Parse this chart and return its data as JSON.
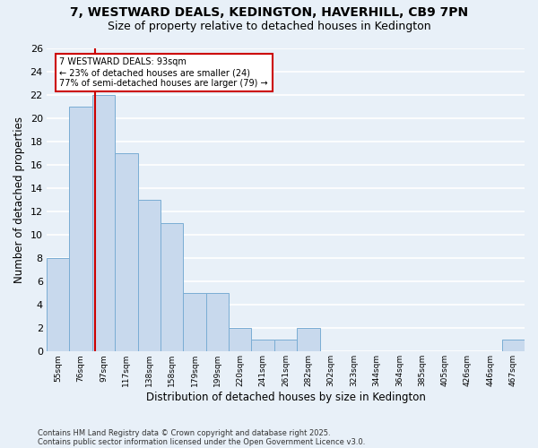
{
  "title_line1": "7, WESTWARD DEALS, KEDINGTON, HAVERHILL, CB9 7PN",
  "title_line2": "Size of property relative to detached houses in Kedington",
  "xlabel": "Distribution of detached houses by size in Kedington",
  "ylabel": "Number of detached properties",
  "categories": [
    "55sqm",
    "76sqm",
    "97sqm",
    "117sqm",
    "138sqm",
    "158sqm",
    "179sqm",
    "199sqm",
    "220sqm",
    "241sqm",
    "261sqm",
    "282sqm",
    "302sqm",
    "323sqm",
    "344sqm",
    "364sqm",
    "385sqm",
    "405sqm",
    "426sqm",
    "446sqm",
    "467sqm"
  ],
  "values": [
    8,
    21,
    22,
    17,
    13,
    11,
    5,
    5,
    2,
    1,
    1,
    2,
    0,
    0,
    0,
    0,
    0,
    0,
    0,
    0,
    1
  ],
  "bar_color": "#c8d9ed",
  "bar_edge_color": "#7aadd4",
  "ylim": [
    0,
    26
  ],
  "yticks": [
    0,
    2,
    4,
    6,
    8,
    10,
    12,
    14,
    16,
    18,
    20,
    22,
    24,
    26
  ],
  "redline_x": 1.62,
  "annotation_text": "7 WESTWARD DEALS: 93sqm\n← 23% of detached houses are smaller (24)\n77% of semi-detached houses are larger (79) →",
  "annotation_box_color": "#ffffff",
  "annotation_box_edge": "#cc0000",
  "redline_color": "#cc0000",
  "background_color": "#e8f0f8",
  "grid_color": "#ffffff",
  "footer_line1": "Contains HM Land Registry data © Crown copyright and database right 2025.",
  "footer_line2": "Contains public sector information licensed under the Open Government Licence v3.0."
}
